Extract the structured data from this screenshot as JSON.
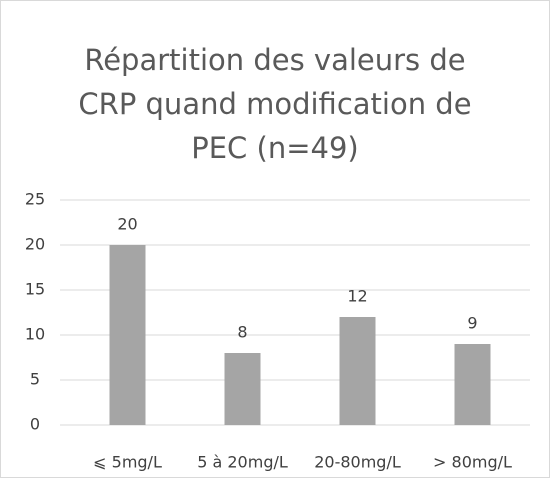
{
  "chart_data": {
    "type": "bar",
    "title": "Répartition des valeurs de CRP quand modification de PEC (n=49)",
    "categories": [
      "⩽ 5mg/L",
      "5 à 20mg/L",
      "20-80mg/L",
      "> 80mg/L"
    ],
    "values": [
      20,
      8,
      12,
      9
    ],
    "color": "#a5a5a5",
    "ylim": [
      0,
      25
    ],
    "yticks": [
      0,
      5,
      10,
      15,
      20,
      25
    ],
    "grid": true
  }
}
